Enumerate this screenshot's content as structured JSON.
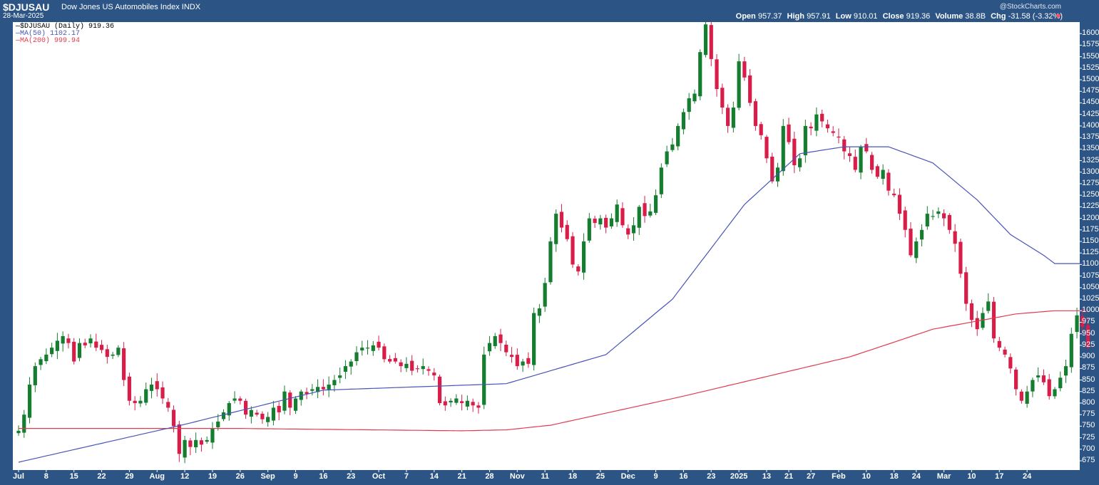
{
  "header": {
    "symbol": "$DJUSAU",
    "name": "Dow Jones US Automobiles Index",
    "exchange": "INDX",
    "date": "28-Mar-2025",
    "brand": "@StockCharts.com",
    "open_label": "Open",
    "open": "957.37",
    "high_label": "High",
    "high": "957.91",
    "low_label": "Low",
    "low": "910.01",
    "close_label": "Close",
    "close": "919.36",
    "volume_label": "Volume",
    "volume": "38.8B",
    "chg_label": "Chg",
    "chg": "-31.58 (-3.32%)"
  },
  "legend": {
    "price": "$DJUSAU (Daily) 919.36",
    "ma50": "MA(50) 1102.17",
    "ma200": "MA(200) 999.94"
  },
  "colors": {
    "up": "#157d2f",
    "down": "#d81e48",
    "ma50": "#4754b8",
    "ma200": "#e23a4e"
  },
  "chart_data": {
    "type": "candlestick",
    "ylim": [
      655,
      1625
    ],
    "y_ticks": [
      675,
      700,
      725,
      750,
      775,
      800,
      825,
      850,
      875,
      900,
      925,
      950,
      975,
      1000,
      1025,
      1050,
      1075,
      1100,
      1125,
      1150,
      1175,
      1200,
      1225,
      1250,
      1275,
      1300,
      1325,
      1350,
      1375,
      1400,
      1425,
      1450,
      1475,
      1500,
      1525,
      1550,
      1575,
      1600
    ],
    "x_ticks": [
      "Jul",
      "8",
      "15",
      "22",
      "29",
      "Aug",
      "12",
      "19",
      "26",
      "Sep",
      "9",
      "16",
      "23",
      "Oct",
      "7",
      "14",
      "21",
      "28",
      "Nov",
      "11",
      "18",
      "25",
      "Dec",
      "9",
      "16",
      "23",
      "2025",
      "13",
      "21",
      "27",
      "Feb",
      "10",
      "18",
      "24",
      "Mar",
      "10",
      "17",
      "24"
    ],
    "tick_index": [
      0,
      5,
      10,
      15,
      20,
      25,
      30,
      35,
      40,
      45,
      50,
      55,
      60,
      65,
      70,
      75,
      80,
      85,
      90,
      95,
      100,
      105,
      110,
      115,
      120,
      125,
      130,
      135,
      139,
      143,
      148,
      153,
      158,
      162,
      167,
      172,
      177,
      182
    ],
    "closes": [
      740,
      775,
      840,
      880,
      895,
      905,
      920,
      935,
      945,
      930,
      890,
      930,
      925,
      940,
      920,
      915,
      900,
      905,
      920,
      850,
      805,
      800,
      805,
      830,
      840,
      830,
      810,
      790,
      750,
      690,
      720,
      705,
      720,
      710,
      720,
      745,
      760,
      780,
      800,
      810,
      805,
      775,
      785,
      775,
      765,
      770,
      790,
      780,
      825,
      790,
      810,
      825,
      820,
      830,
      835,
      830,
      840,
      850,
      860,
      880,
      890,
      910,
      920,
      920,
      925,
      920,
      895,
      890,
      890,
      880,
      885,
      870,
      875,
      880,
      870,
      860,
      800,
      795,
      805,
      810,
      800,
      805,
      795,
      790,
      905,
      930,
      945,
      930,
      910,
      900,
      880,
      890,
      885,
      995,
      1005,
      1060,
      1150,
      1210,
      1180,
      1155,
      1100,
      1085,
      1150,
      1200,
      1190,
      1200,
      1180,
      1200,
      1230,
      1185,
      1165,
      1185,
      1225,
      1205,
      1215,
      1250,
      1310,
      1345,
      1360,
      1400,
      1430,
      1460,
      1470,
      1560,
      1620,
      1545,
      1480,
      1440,
      1400,
      1440,
      1540,
      1505,
      1450,
      1400,
      1380,
      1330,
      1280,
      1310,
      1400,
      1365,
      1315,
      1330,
      1400,
      1395,
      1425,
      1410,
      1395,
      1385,
      1375,
      1345,
      1335,
      1305,
      1355,
      1345,
      1305,
      1290,
      1305,
      1260,
      1250,
      1210,
      1175,
      1120,
      1150,
      1175,
      1210,
      1205,
      1215,
      1200,
      1175,
      1145,
      1080,
      1015,
      980,
      960,
      995,
      1020,
      940,
      920,
      905,
      875,
      830,
      805,
      825,
      850,
      860,
      845,
      815,
      830,
      855,
      880,
      950,
      990,
      965,
      920
    ],
    "ma50_endpoints": [
      [
        0,
        672
      ],
      [
        29,
        751
      ],
      [
        55,
        828
      ],
      [
        88,
        842
      ],
      [
        106,
        905
      ],
      [
        118,
        1025
      ],
      [
        131,
        1230
      ],
      [
        141,
        1340
      ],
      [
        149,
        1355
      ],
      [
        157,
        1355
      ],
      [
        165,
        1320
      ],
      [
        173,
        1240
      ],
      [
        179,
        1165
      ],
      [
        185,
        1120
      ],
      [
        187,
        1102
      ]
    ],
    "ma200_endpoints": [
      [
        0,
        745
      ],
      [
        40,
        745
      ],
      [
        80,
        740
      ],
      [
        88,
        742
      ],
      [
        96,
        752
      ],
      [
        120,
        815
      ],
      [
        150,
        900
      ],
      [
        165,
        960
      ],
      [
        180,
        993
      ],
      [
        187,
        1000
      ]
    ]
  }
}
